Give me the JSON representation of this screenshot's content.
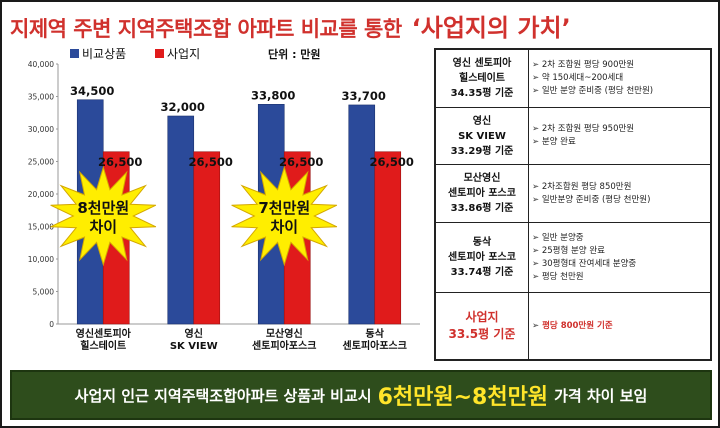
{
  "title": {
    "main": "지제역 주변 지역주택조합 아파트 비교를 통한",
    "highlight": "‘사업지의 가치’"
  },
  "chart_data": {
    "type": "bar",
    "categories": [
      [
        "영신센토피아",
        "힐스테이트"
      ],
      [
        "영신",
        "SK VIEW"
      ],
      [
        "모산영신",
        "센토피아포스크"
      ],
      [
        "동삭",
        "센토피아포스크"
      ]
    ],
    "series": [
      {
        "name": "비교상품",
        "values": [
          34500,
          32000,
          33800,
          33700
        ],
        "color": "#2b4a9a"
      },
      {
        "name": "사업지",
        "values": [
          26500,
          26500,
          26500,
          26500
        ],
        "color": "#e01b1b"
      }
    ],
    "value_labels": {
      "compare": [
        "34,500",
        "32,000",
        "33,800",
        "33,700"
      ],
      "site": [
        "26,500",
        "26,500",
        "26,500",
        "26,500"
      ]
    },
    "unit_label": "단위 : 만원",
    "ylim": [
      0,
      40000
    ],
    "yticks": [
      "0",
      "5,000",
      "10,000",
      "15,000",
      "20,000",
      "25,000",
      "30,000",
      "35,000",
      "40,000"
    ],
    "grid": false,
    "legend": "top",
    "annotations": [
      {
        "lines": [
          "8천만원",
          "차이"
        ],
        "between": [
          0,
          1
        ]
      },
      {
        "lines": [
          "7천만원",
          "차이"
        ],
        "between": [
          2,
          3
        ]
      }
    ]
  },
  "table": [
    {
      "name": [
        "영신 센토피아",
        "힐스테이트",
        "34.35평 기준"
      ],
      "notes": [
        "2차 조합원 평당 900만원",
        "약 150세대~200세대",
        "일반 분양 준비중 (평당 천만원)"
      ]
    },
    {
      "name": [
        "영신",
        "SK VIEW",
        "33.29평 기준"
      ],
      "notes": [
        "2차 조합원 평당 950만원",
        "분양 완료"
      ]
    },
    {
      "name": [
        "모산영신",
        "센토피아 포스코",
        "33.86평 기준"
      ],
      "notes": [
        "2차조합원 평당 850만원",
        "일반분양 준비중 (평당 천만원)"
      ]
    },
    {
      "name": [
        "동삭",
        "센토피아 포스코",
        "33.74평 기준"
      ],
      "notes": [
        "일반 분양중",
        "25평형 분양 완료",
        "30평형대 잔여세대 분양중",
        "평당 천만원"
      ]
    },
    {
      "name": [
        "사업지",
        "33.5평 기준"
      ],
      "notes": [
        "평당 800만원 기준"
      ]
    }
  ],
  "banner": {
    "prefix": "사업지 인근 지역주택조합아파트 상품과 비교시",
    "highlight": "6천만원~8천만원",
    "suffix": "가격 차이 보임"
  }
}
